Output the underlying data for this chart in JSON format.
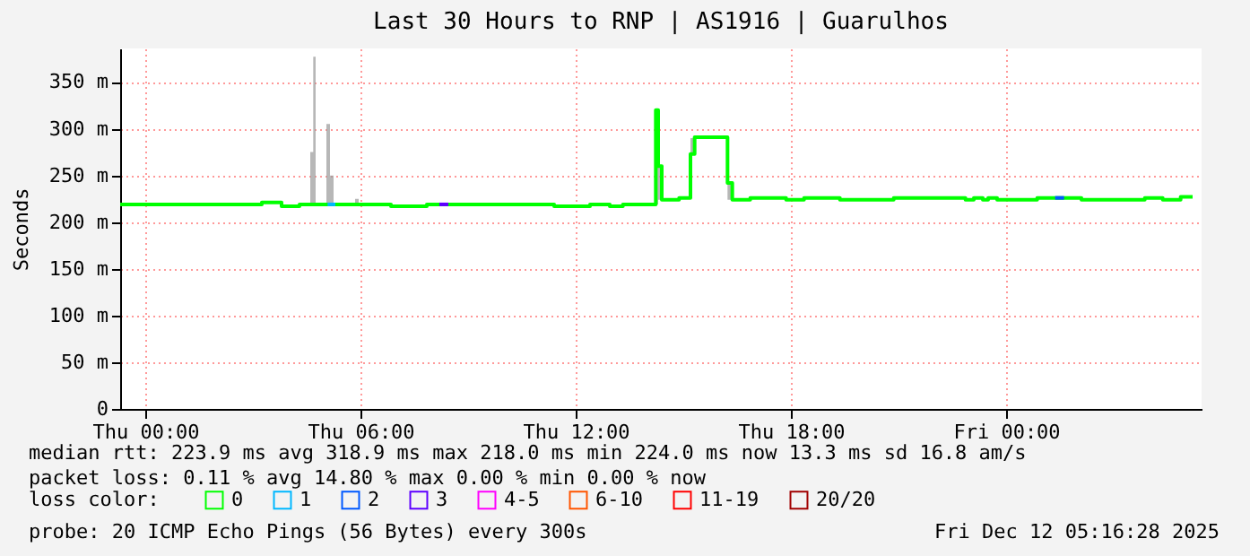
{
  "chart_data": {
    "type": "step",
    "title": "Last 30 Hours to RNP | AS1916 | Guarulhos",
    "ylabel": "Seconds",
    "legend_title": "loss color:",
    "x": [
      "2025-12-10T23:18",
      "2025-12-11T03:15",
      "2025-12-11T03:48",
      "2025-12-11T04:18",
      "2025-12-11T04:36",
      "2025-12-11T04:41",
      "2025-12-11T04:45",
      "2025-12-11T05:03",
      "2025-12-11T05:09",
      "2025-12-11T05:15",
      "2025-12-11T05:51",
      "2025-12-11T05:57",
      "2025-12-11T06:51",
      "2025-12-11T07:51",
      "2025-12-11T11:24",
      "2025-12-11T12:24",
      "2025-12-11T12:57",
      "2025-12-11T13:19",
      "2025-12-11T14:14",
      "2025-12-11T14:18",
      "2025-12-11T14:24",
      "2025-12-11T14:53",
      "2025-12-11T15:12",
      "2025-12-11T15:19",
      "2025-12-11T16:14",
      "2025-12-11T16:22",
      "2025-12-11T16:52",
      "2025-12-11T17:52",
      "2025-12-11T18:22",
      "2025-12-11T19:22",
      "2025-12-11T20:52",
      "2025-12-11T22:52",
      "2025-12-11T23:06",
      "2025-12-11T23:21",
      "2025-12-11T23:30",
      "2025-12-11T23:45",
      "2025-12-12T00:52",
      "2025-12-12T02:06",
      "2025-12-12T03:52",
      "2025-12-12T04:22",
      "2025-12-12T04:52",
      "2025-12-12T05:12"
    ],
    "series": [
      {
        "name": "0",
        "color": "#00ff00",
        "values": [
          219,
          221,
          217,
          219,
          219,
          219,
          219,
          219,
          219,
          219,
          219,
          219,
          217,
          219,
          217,
          219,
          217,
          219,
          320,
          260,
          224,
          226,
          273,
          291,
          242,
          224,
          226,
          224,
          226,
          224,
          226,
          224,
          226,
          224,
          226,
          224,
          226,
          224,
          226,
          224,
          227,
          227
        ],
        "lower": [
          219,
          221,
          217,
          219,
          219,
          219,
          219,
          219,
          219,
          219,
          219,
          219,
          217,
          219,
          217,
          219,
          217,
          219,
          219,
          224,
          224,
          226,
          273,
          291,
          224,
          224,
          226,
          224,
          226,
          224,
          226,
          224,
          226,
          224,
          226,
          224,
          226,
          224,
          226,
          224,
          227,
          227
        ],
        "upper": [
          219,
          221,
          217,
          219,
          275,
          377,
          219,
          305,
          250,
          219,
          225,
          219,
          217,
          219,
          217,
          219,
          217,
          219,
          320,
          260,
          224,
          226,
          290,
          291,
          242,
          224,
          226,
          224,
          226,
          224,
          226,
          224,
          226,
          224,
          226,
          224,
          226,
          224,
          226,
          224,
          227,
          227
        ]
      },
      {
        "name": "1",
        "color": "#00b8ff",
        "x": [
          "2025-12-11T05:05",
          "2025-12-11T05:18"
        ],
        "values": [
          219,
          219
        ]
      },
      {
        "name": "2",
        "color": "#0059ff",
        "x": [
          "2025-12-12T01:22",
          "2025-12-12T01:37"
        ],
        "values": [
          226,
          226
        ]
      },
      {
        "name": "3",
        "color": "#5e00ff",
        "x": [
          "2025-12-11T08:12",
          "2025-12-11T08:27"
        ],
        "values": [
          219,
          219
        ]
      },
      {
        "name": "4-5",
        "color": "#ff00fe",
        "values": [
          null,
          null,
          null,
          null,
          null,
          null,
          null,
          null,
          null,
          null,
          null,
          null,
          null,
          null,
          null,
          null,
          null,
          null,
          null,
          null,
          null,
          null,
          null,
          null,
          null,
          null,
          null,
          null,
          null,
          null,
          null,
          null,
          null,
          null,
          null,
          null,
          null,
          null,
          null,
          null,
          null,
          null
        ]
      },
      {
        "name": "6-10",
        "color": "#ff5500",
        "values": [
          null,
          null,
          null,
          null,
          null,
          null,
          null,
          null,
          null,
          null,
          null,
          null,
          null,
          null,
          null,
          null,
          null,
          null,
          null,
          null,
          null,
          null,
          null,
          null,
          null,
          null,
          null,
          null,
          null,
          null,
          null,
          null,
          null,
          null,
          null,
          null,
          null,
          null,
          null,
          null,
          null,
          null
        ]
      },
      {
        "name": "11-19",
        "color": "#ff0000",
        "values": [
          null,
          null,
          null,
          null,
          null,
          null,
          null,
          null,
          null,
          null,
          null,
          null,
          null,
          null,
          null,
          null,
          null,
          null,
          null,
          null,
          null,
          null,
          null,
          null,
          null,
          null,
          null,
          null,
          null,
          null,
          null,
          null,
          null,
          null,
          null,
          null,
          null,
          null,
          null,
          null,
          null,
          null
        ]
      },
      {
        "name": "20/20",
        "color": "#a10000",
        "values": [
          null,
          null,
          null,
          null,
          null,
          null,
          null,
          null,
          null,
          null,
          null,
          null,
          null,
          null,
          null,
          null,
          null,
          null,
          null,
          null,
          null,
          null,
          null,
          null,
          null,
          null,
          null,
          null,
          null,
          null,
          null,
          null,
          null,
          null,
          null,
          null,
          null,
          null,
          null,
          null,
          null,
          null
        ]
      }
    ],
    "xlim": [
      "2025-12-10T23:18",
      "2025-12-12T05:27"
    ],
    "xticks": [
      {
        "value": "2025-12-11T00:00",
        "label": "Thu 00:00"
      },
      {
        "value": "2025-12-11T06:00",
        "label": "Thu 06:00"
      },
      {
        "value": "2025-12-11T12:00",
        "label": "Thu 12:00"
      },
      {
        "value": "2025-12-11T18:00",
        "label": "Thu 18:00"
      },
      {
        "value": "2025-12-12T00:00",
        "label": "Fri 00:00"
      }
    ],
    "ylim": [
      0,
      386
    ],
    "yticks": [
      0,
      {
        "value": 50,
        "label": "50 m"
      },
      {
        "value": 100,
        "label": "100 m"
      },
      {
        "value": 150,
        "label": "150 m"
      },
      {
        "value": 200,
        "label": "200 m"
      },
      {
        "value": 250,
        "label": "250 m"
      },
      {
        "value": 300,
        "label": "300 m"
      },
      {
        "value": 350,
        "label": "350 m"
      }
    ],
    "grid": true,
    "legend": "bottom",
    "annotations": [
      "median rtt: 223.9 ms avg 318.9 ms max 218.0 ms min 224.0 ms now 13.3 ms sd 16.8 am/s",
      "packet loss: 0.11 % avg 14.80 % max 0.00 % min 0.00 % now",
      "probe: 20 ICMP Echo Pings (56 Bytes) every 300s",
      "Fri Dec 12 05:16:28 2025"
    ]
  }
}
